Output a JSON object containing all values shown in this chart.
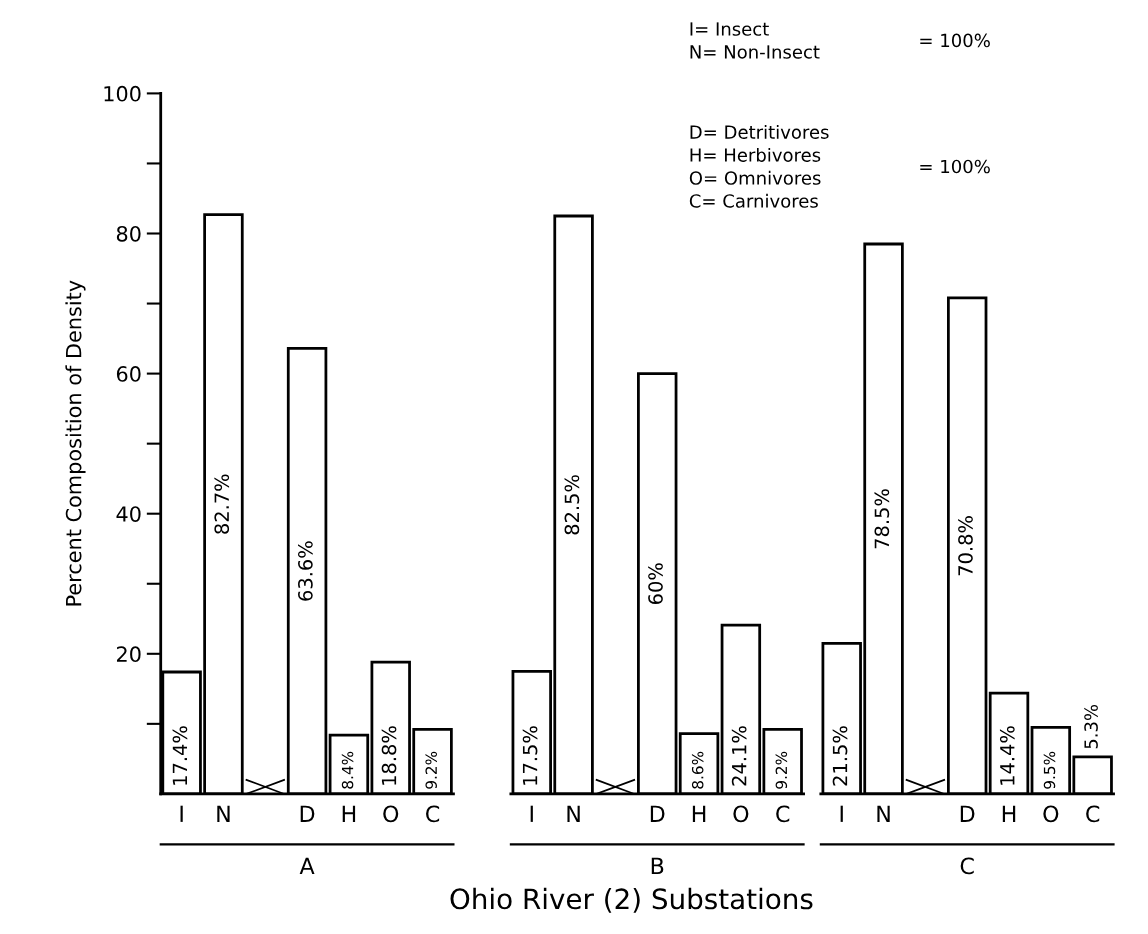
{
  "chart_data": [
    {
      "type": "bar",
      "xlabel": "A",
      "ylabel": "Percent Composition of Density",
      "categories": [
        "I",
        "N",
        null,
        "D",
        "H",
        "O",
        "C"
      ],
      "values": [
        17.4,
        82.7,
        null,
        63.6,
        8.4,
        18.8,
        9.2
      ],
      "value_labels": [
        "17.4%",
        "82.7%",
        null,
        "63.6%",
        "8.4%",
        "18.8%",
        "9.2%"
      ],
      "color": "#ffffff",
      "ylim": [
        0,
        100
      ],
      "yticks": [
        {
          "value": 10,
          "label": null
        },
        20,
        {
          "value": 30,
          "label": null
        },
        40,
        {
          "value": 50,
          "label": null
        },
        60,
        {
          "value": 70,
          "label": null
        },
        80,
        {
          "value": 90,
          "label": null
        },
        100
      ],
      "grid": false
    },
    {
      "type": "bar",
      "xlabel": "B",
      "categories": [
        "I",
        "N",
        null,
        "D",
        "H",
        "O",
        "C"
      ],
      "values": [
        17.5,
        82.5,
        null,
        60,
        8.6,
        24.1,
        9.2
      ],
      "value_labels": [
        "17.5%",
        "82.5%",
        null,
        "60%",
        "8.6%",
        "24.1%",
        "9.2%"
      ],
      "color": "#ffffff",
      "ylim": [
        0,
        100
      ],
      "tick_labels": "x",
      "grid": false,
      "annotations": [
        "Ohio River (2) Substations"
      ]
    },
    {
      "type": "bar",
      "xlabel": "C",
      "categories": [
        "I",
        "N",
        null,
        "D",
        "H",
        "O",
        "C"
      ],
      "values": [
        21.5,
        78.5,
        null,
        70.8,
        14.4,
        9.5,
        5.3
      ],
      "value_labels": [
        "21.5%",
        "78.5%",
        null,
        "70.8%",
        "14.4%",
        "9.5%",
        "5.3%"
      ],
      "color": "#ffffff",
      "ylim": [
        0,
        100
      ],
      "tick_labels": "x",
      "grid": false,
      "annotations": [
        "I= Insect\nN= Non-Insect",
        "= 100%",
        "D= Detritivores\nH= Herbivores\nO= Omnivores\nC= Carnivores",
        "= 100%"
      ]
    }
  ]
}
